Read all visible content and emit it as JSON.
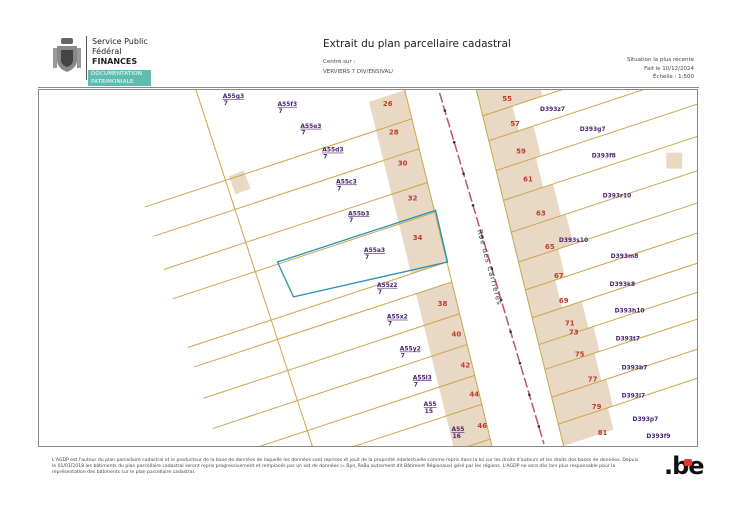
{
  "header": {
    "org_line1": "Service Public",
    "org_line2": "Fédéral",
    "org_line3": "FINANCES",
    "tag1": "DOCUMENTATION",
    "tag2": "PATRIMONIALE",
    "title": "Extrait du plan parcellaire cadastral",
    "centre_label": "Centré sur :",
    "centre_value": "VERVIERS 7 DIV/ENSIVAL/",
    "situation": "Situation la plus récente",
    "date": "Fait le 10/12/2024",
    "scale": "Échelle : 1:500"
  },
  "map": {
    "street": "Rue des Carrières",
    "colors": {
      "building": "#e8d8c4",
      "parcel_line": "#c9a64a",
      "selected": "#2a8fb5",
      "street_axis": "#c0506a",
      "house_number": "#c0392b",
      "parcel_label": "#4a2270"
    },
    "left_parcels": [
      {
        "id": "A55g3",
        "sub": "7"
      },
      {
        "id": "A55f3",
        "sub": "7"
      },
      {
        "id": "A55e3",
        "sub": "7"
      },
      {
        "id": "A55d3",
        "sub": "7"
      },
      {
        "id": "A55c3",
        "sub": "7"
      },
      {
        "id": "A55b3",
        "sub": "7"
      },
      {
        "id": "A55a3",
        "sub": "7"
      },
      {
        "id": "A55z2",
        "sub": "7"
      },
      {
        "id": "A55x2",
        "sub": "7"
      },
      {
        "id": "A55y2",
        "sub": "7"
      },
      {
        "id": "A55l3",
        "sub": "7"
      },
      {
        "id": "A55",
        "sub": "15"
      },
      {
        "id": "A55",
        "sub": "16"
      }
    ],
    "left_numbers": [
      "26",
      "28",
      "30",
      "32",
      "34",
      "38",
      "40",
      "42",
      "44",
      "46"
    ],
    "right_numbers": [
      "55",
      "57",
      "59",
      "61",
      "63",
      "65",
      "67",
      "69",
      "71",
      "73",
      "75",
      "77",
      "79",
      "81"
    ],
    "right_parcels": [
      "D393z7",
      "D393g7",
      "D393f8",
      "D393r10",
      "D393s10",
      "D393m8",
      "D393k8",
      "D393h10",
      "D393t7",
      "D393b7",
      "D393l7",
      "D393p7",
      "D393f9"
    ]
  },
  "footer": {
    "text": "L'AGDP est l'auteur du plan parcellaire cadastral et le producteur de la base de données de laquelle les données sont reprises et jouit de la propriété intellectuelle comme repris dans la loi sur les droits d'auteurs et les droits des bases de données. Depuis le 01/01/2018 les bâtiments du plan parcellaire cadastral seront repris progressivement et remplacés par un set de données (« Bpn_ReBu autrement dit Bâtiment Régionaux) géré par les régions. L'AGDP ne sera dès lors plus responsable pour la représentation des bâtiments sur le plan parcellaire cadastral.",
    "logo": ".be"
  }
}
